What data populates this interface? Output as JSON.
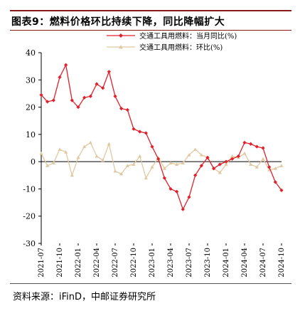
{
  "title": "图表9：燃料价格环比持续下降，同比降幅扩大",
  "source": "资料来源：iFinD，中邮证券研究所",
  "colors": {
    "accent": "#8b1a1a",
    "yoy": "#e0202a",
    "mom": "#e0c9a0"
  },
  "chart_data": {
    "type": "line",
    "ylim": [
      -30,
      40
    ],
    "yticks": [
      -30,
      -20,
      -10,
      0,
      10,
      20,
      30,
      40
    ],
    "grid": false,
    "legend_position": "top",
    "x": [
      "2021-07",
      "2021-08",
      "2021-09",
      "2021-10",
      "2021-11",
      "2021-12",
      "2022-01",
      "2022-02",
      "2022-03",
      "2022-04",
      "2022-05",
      "2022-06",
      "2022-07",
      "2022-08",
      "2022-09",
      "2022-10",
      "2022-11",
      "2022-12",
      "2023-01",
      "2023-02",
      "2023-03",
      "2023-04",
      "2023-05",
      "2023-06",
      "2023-07",
      "2023-08",
      "2023-09",
      "2023-10",
      "2023-11",
      "2023-12",
      "2024-01",
      "2024-02",
      "2024-03",
      "2024-04",
      "2024-05",
      "2024-06",
      "2024-07",
      "2024-08",
      "2024-09",
      "2024-10"
    ],
    "xtick_labels": [
      "2021-07",
      "2021-10",
      "2022-01",
      "2022-04",
      "2022-07",
      "2022-10",
      "2023-01",
      "2023-04",
      "2023-07",
      "2023-10",
      "2024-01",
      "2024-04",
      "2024-07",
      "2024-10"
    ],
    "series": [
      {
        "name": "交通工具用燃料：当月同比(%)",
        "values": [
          24.5,
          22,
          22.5,
          31,
          35.5,
          22.5,
          20,
          23.5,
          24,
          28.5,
          27,
          33,
          24,
          19.5,
          19,
          12,
          11,
          10.5,
          5.5,
          1,
          -6,
          -10,
          -11,
          -17.5,
          -13,
          -5,
          -1.5,
          1.5,
          -2.5,
          -1,
          0,
          1,
          2,
          7,
          6.5,
          5.5,
          5,
          -2,
          -7.5,
          -10.5
        ]
      },
      {
        "name": "交通工具用燃料：环比(%)",
        "values": [
          3,
          -1.5,
          -0.5,
          4.5,
          3.5,
          -5,
          1.5,
          5.5,
          7,
          2,
          0.5,
          6.5,
          -3.5,
          -4.5,
          -1.5,
          -1,
          2,
          -6,
          -2,
          1.5,
          -2.5,
          -0.5,
          -1,
          -0.5,
          2.5,
          4.5,
          2.5,
          1.5,
          -2.5,
          -4,
          -1,
          2,
          1.5,
          3,
          -1,
          -2,
          1,
          -3,
          -2.5,
          -1.5
        ]
      }
    ]
  }
}
